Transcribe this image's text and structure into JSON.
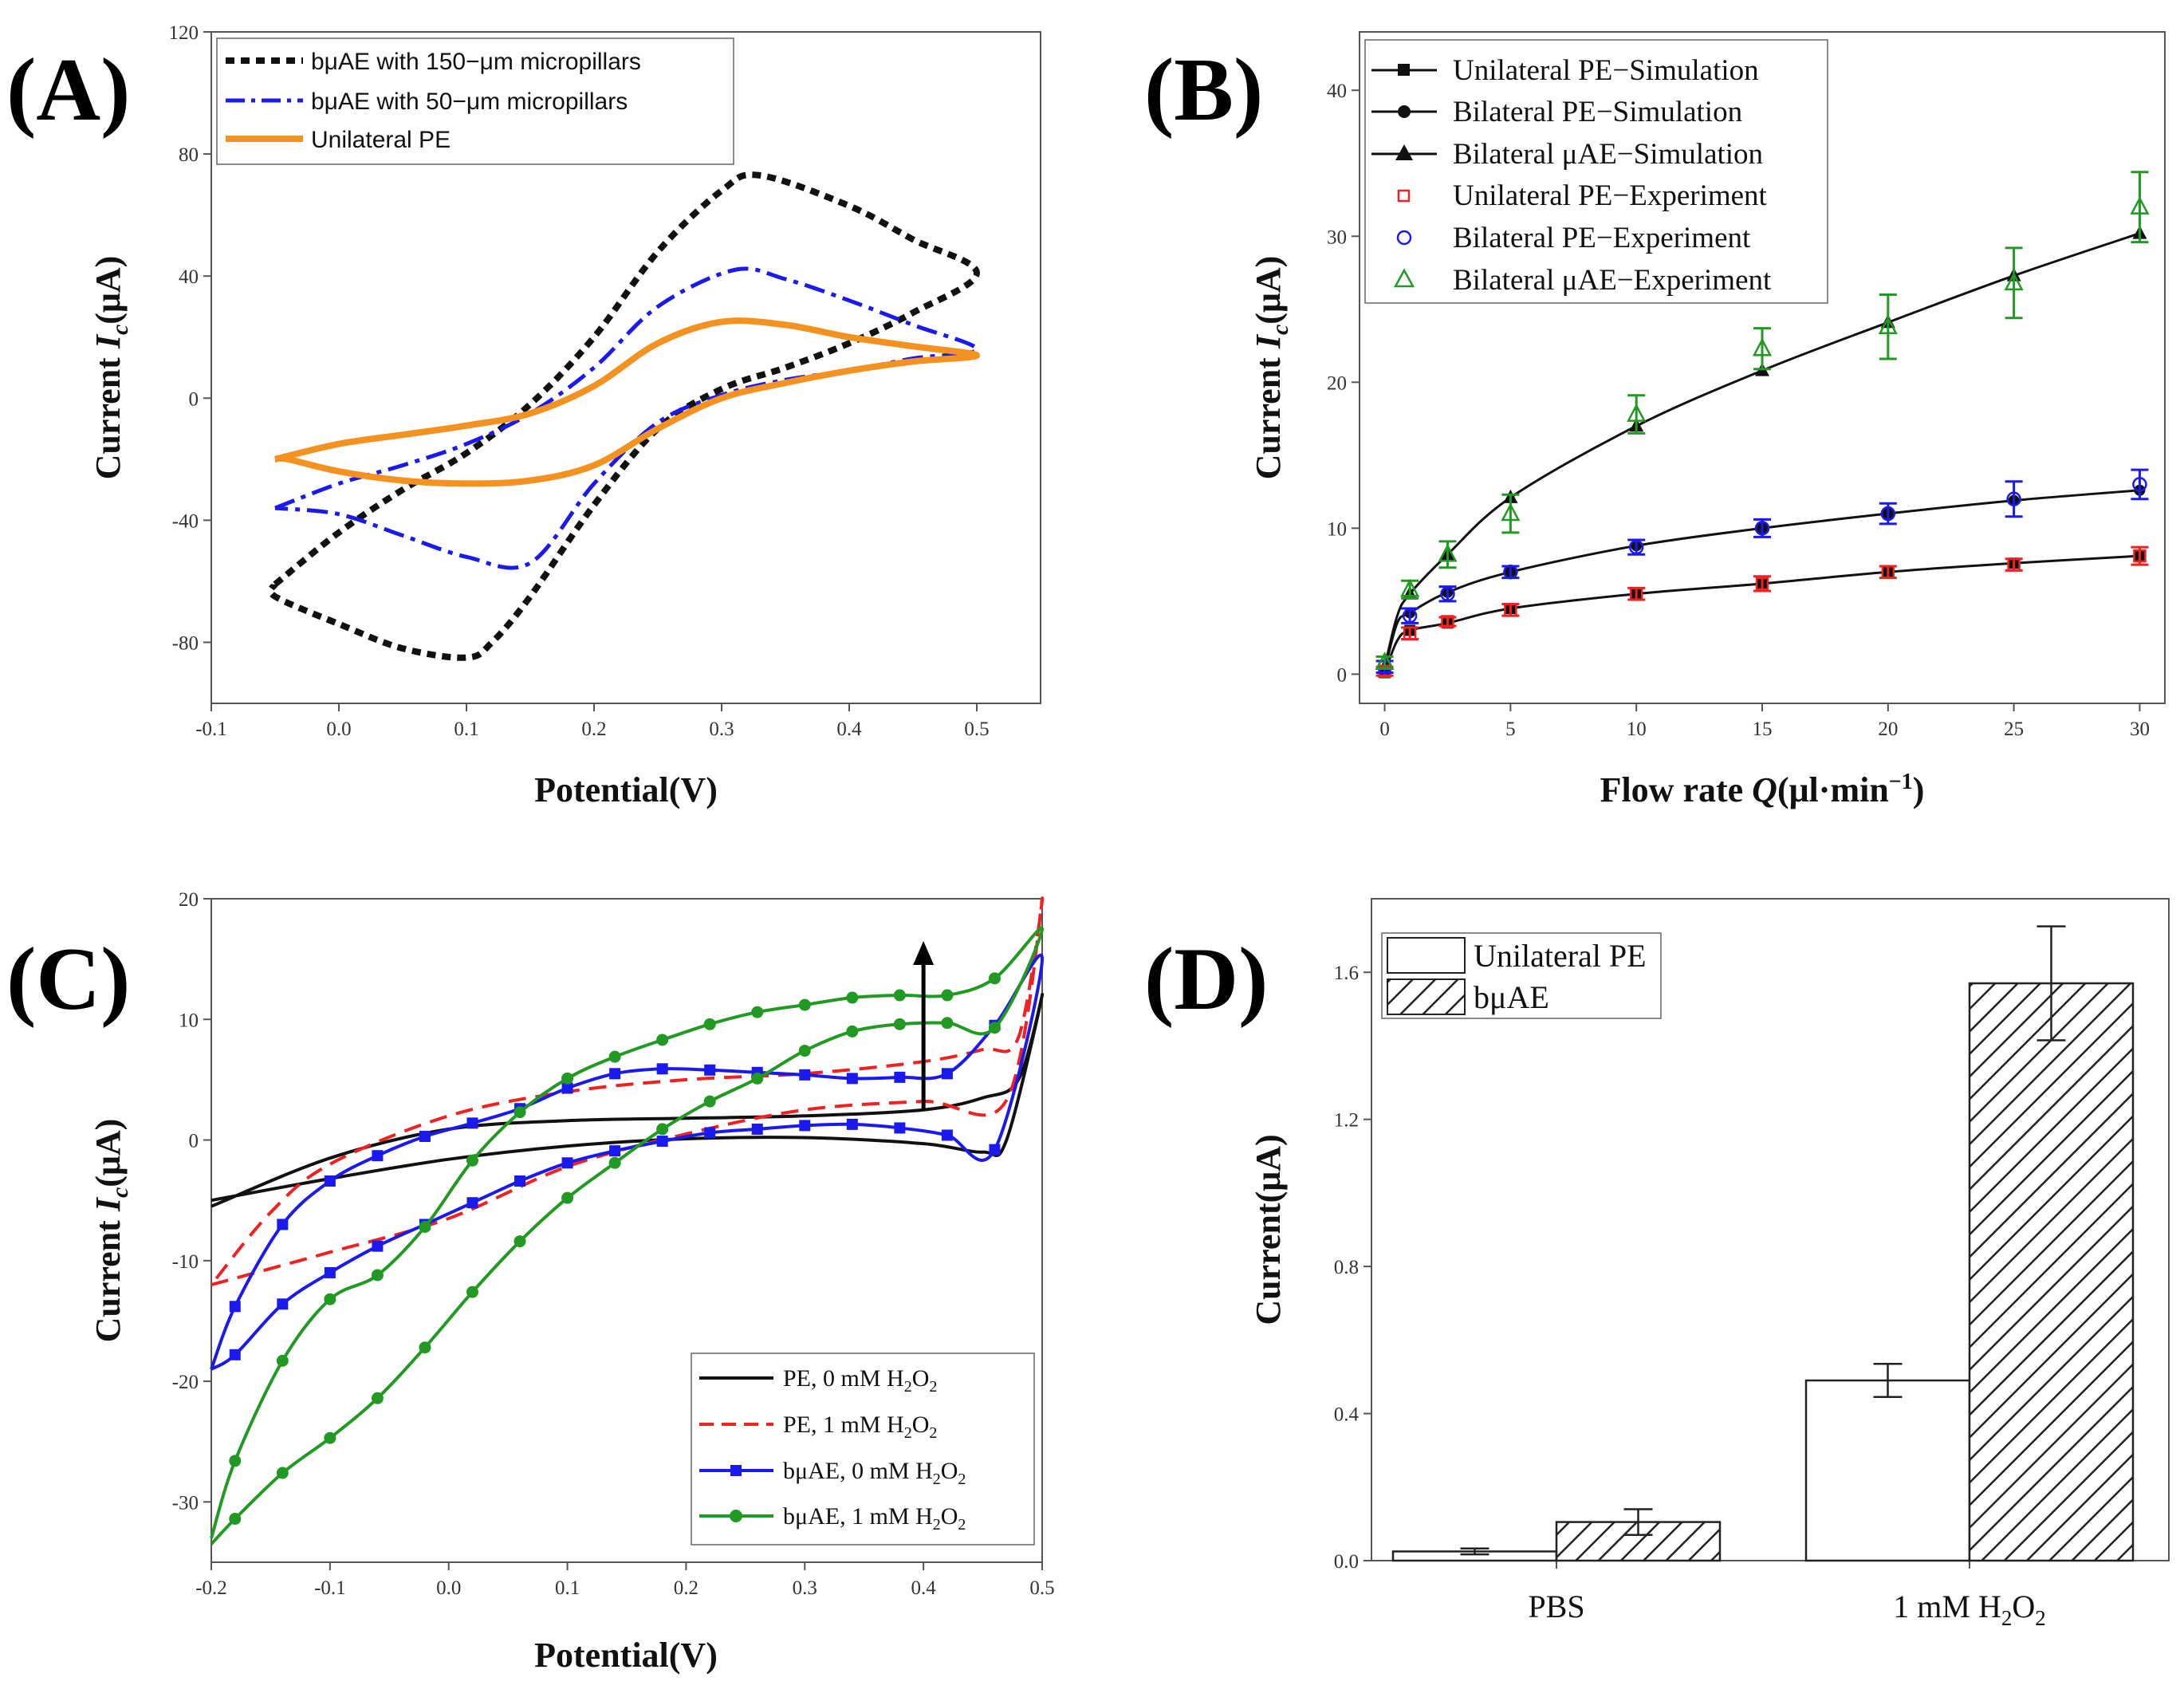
{
  "colors": {
    "black": "#111111",
    "blue": "#1a1aee",
    "orange": "#f39121",
    "red": "#ee2222",
    "green": "#229922",
    "gray": "#444444"
  },
  "chart_data": [
    {
      "panel": "(A)",
      "type": "line",
      "xlabel": "Potential(V)",
      "ylabel": "Current I_c(μA)",
      "xlim": [
        -0.1,
        0.55
      ],
      "ylim": [
        -100,
        120
      ],
      "xticks": [
        -0.1,
        0.0,
        0.1,
        0.2,
        0.3,
        0.4,
        0.5
      ],
      "xtick_labels": [
        "-0.1",
        "0.0",
        "0.1",
        "0.2",
        "0.3",
        "0.4",
        "0.5"
      ],
      "yticks": [
        -80,
        -40,
        0,
        40,
        80,
        120
      ],
      "ytick_labels": [
        "-80",
        "-40",
        "0",
        "40",
        "80",
        "120"
      ],
      "series": [
        {
          "name": "bμAE with 150−μm micropillars",
          "style": "dotted",
          "color": "#111111",
          "x": [
            -0.05,
            0.0,
            0.05,
            0.1,
            0.15,
            0.2,
            0.25,
            0.3,
            0.33,
            0.4,
            0.45,
            0.5,
            0.45,
            0.4,
            0.35,
            0.3,
            0.25,
            0.2,
            0.15,
            0.12,
            0.1,
            0.05,
            0.0,
            -0.05,
            -0.05
          ],
          "y": [
            -61,
            -44,
            -30,
            -18,
            -2,
            20,
            48,
            68,
            73,
            63,
            52,
            41,
            28,
            18,
            10,
            3,
            -10,
            -35,
            -65,
            -80,
            -85,
            -82,
            -74,
            -65,
            -61
          ]
        },
        {
          "name": "bμAE with 50−μm micropillars",
          "style": "dashdot",
          "color": "#1a1aee",
          "x": [
            -0.05,
            0.0,
            0.05,
            0.1,
            0.15,
            0.2,
            0.25,
            0.31,
            0.35,
            0.4,
            0.45,
            0.5,
            0.45,
            0.4,
            0.35,
            0.3,
            0.25,
            0.2,
            0.15,
            0.1,
            0.05,
            0.0,
            -0.05
          ],
          "y": [
            -36,
            -28,
            -22,
            -15,
            -5,
            10,
            30,
            42,
            39,
            32,
            24,
            16,
            13,
            9,
            6,
            1,
            -8,
            -28,
            -54,
            -52,
            -45,
            -38,
            -36
          ]
        },
        {
          "name": "Unilateral PE",
          "style": "solid",
          "color": "#f39121",
          "x": [
            -0.05,
            0.0,
            0.05,
            0.1,
            0.15,
            0.2,
            0.25,
            0.3,
            0.35,
            0.4,
            0.45,
            0.5,
            0.45,
            0.4,
            0.35,
            0.3,
            0.25,
            0.2,
            0.15,
            0.1,
            0.05,
            0.0,
            -0.04,
            -0.05
          ],
          "y": [
            -20,
            -15,
            -12,
            -9,
            -5,
            4,
            18,
            25,
            24,
            20,
            17,
            14,
            12,
            9,
            5,
            0,
            -10,
            -22,
            -27,
            -28,
            -27,
            -24,
            -20,
            -20
          ]
        }
      ]
    },
    {
      "panel": "(B)",
      "type": "line",
      "xlabel": "Flow rate Q(μl·min⁻¹)",
      "ylabel": "Current I_c(μA)",
      "xlim": [
        -1,
        31
      ],
      "ylim": [
        -2,
        44
      ],
      "xticks": [
        0,
        5,
        10,
        15,
        20,
        25,
        30
      ],
      "xtick_labels": [
        "0",
        "5",
        "10",
        "15",
        "20",
        "25",
        "30"
      ],
      "yticks": [
        0,
        10,
        20,
        30,
        40
      ],
      "ytick_labels": [
        "0",
        "10",
        "20",
        "30",
        "40"
      ],
      "x": [
        0,
        0.5,
        1,
        2.5,
        5,
        10,
        15,
        20,
        25,
        30
      ],
      "series": [
        {
          "name": "Unilateral PE−Simulation",
          "marker": "square",
          "color": "#111111",
          "values": [
            0.1,
            2.3,
            3.0,
            3.5,
            4.5,
            5.5,
            6.2,
            7.0,
            7.6,
            8.1
          ]
        },
        {
          "name": "Bilateral PE−Simulation",
          "marker": "circle",
          "color": "#111111",
          "values": [
            0.3,
            3.5,
            4.2,
            5.6,
            7.0,
            8.8,
            10.0,
            11.0,
            11.9,
            12.6
          ]
        },
        {
          "name": "Bilateral μAE−Simulation",
          "marker": "triangle",
          "color": "#111111",
          "values": [
            0.5,
            4.0,
            5.5,
            8.2,
            12.1,
            17.0,
            20.8,
            24.1,
            27.3,
            30.2
          ]
        },
        {
          "name": "Unilateral PE−Experiment",
          "marker": "open-square",
          "color": "#ee2222",
          "x": [
            0,
            1,
            2.5,
            5,
            10,
            15,
            20,
            25,
            30
          ],
          "values": [
            0.2,
            2.8,
            3.6,
            4.4,
            5.5,
            6.2,
            7.0,
            7.5,
            8.1
          ],
          "err": [
            0.3,
            0.4,
            0.3,
            0.4,
            0.4,
            0.5,
            0.4,
            0.4,
            0.6
          ]
        },
        {
          "name": "Bilateral PE−Experiment",
          "marker": "open-circle",
          "color": "#1a1aee",
          "x": [
            0,
            1,
            2.5,
            5,
            10,
            15,
            20,
            25,
            30
          ],
          "values": [
            0.5,
            4.0,
            5.5,
            7.0,
            8.7,
            10.0,
            11.0,
            12.0,
            13.0
          ],
          "err": [
            0.4,
            0.5,
            0.5,
            0.4,
            0.5,
            0.6,
            0.7,
            1.2,
            1.0
          ]
        },
        {
          "name": "Bilateral μAE−Experiment",
          "marker": "open-triangle",
          "color": "#229922",
          "x": [
            0,
            1,
            2.5,
            5,
            10,
            15,
            20,
            25,
            30
          ],
          "values": [
            0.8,
            5.8,
            8.2,
            11.0,
            17.8,
            22.3,
            23.8,
            26.8,
            32.0
          ],
          "err": [
            0.4,
            0.6,
            0.9,
            1.3,
            1.3,
            1.4,
            2.2,
            2.4,
            2.4
          ]
        }
      ]
    },
    {
      "panel": "(C)",
      "type": "line",
      "xlabel": "Potential(V)",
      "ylabel": "Current I_c(μA)",
      "xlim": [
        -0.2,
        0.5
      ],
      "ylim": [
        -35,
        20
      ],
      "xticks": [
        -0.2,
        -0.1,
        0.0,
        0.1,
        0.2,
        0.3,
        0.4,
        0.5
      ],
      "xtick_labels": [
        "-0.2",
        "-0.1",
        "0.0",
        "0.1",
        "0.2",
        "0.3",
        "0.4",
        "0.5"
      ],
      "yticks": [
        -30,
        -20,
        -10,
        0,
        10,
        20
      ],
      "ytick_labels": [
        "-30",
        "-20",
        "-10",
        "0",
        "10",
        "20"
      ],
      "series": [
        {
          "name": "PE, 0 mM H₂O₂",
          "style": "solid",
          "color": "#111111",
          "x": [
            -0.2,
            -0.1,
            0.0,
            0.1,
            0.2,
            0.3,
            0.4,
            0.45,
            0.47,
            0.5,
            0.48,
            0.45,
            0.4,
            0.3,
            0.2,
            0.1,
            0.0,
            -0.1,
            -0.2
          ],
          "y": [
            -5,
            -3.2,
            -1.6,
            -0.5,
            0.1,
            0.2,
            -0.3,
            -1.0,
            0,
            12,
            5,
            3.5,
            2.5,
            2.0,
            1.8,
            1.6,
            0.9,
            -1.5,
            -5.5
          ]
        },
        {
          "name": "PE, 1 mM H₂O₂",
          "style": "dashed",
          "color": "#ee2222",
          "x": [
            -0.2,
            -0.1,
            0.0,
            0.1,
            0.2,
            0.3,
            0.4,
            0.47,
            0.5,
            0.48,
            0.45,
            0.4,
            0.3,
            0.2,
            0.1,
            0.0,
            -0.1,
            -0.15,
            -0.2
          ],
          "y": [
            -12,
            -9.3,
            -6.5,
            -2.2,
            0.5,
            2.5,
            3.2,
            3.3,
            20,
            8.5,
            7.5,
            6.5,
            5.5,
            5.0,
            4.0,
            2.0,
            -2,
            -6,
            -12
          ]
        },
        {
          "name": "bμAE, 0 mM H₂O₂",
          "style": "solid-marker",
          "marker": "square",
          "color": "#1a1aee",
          "x": [
            -0.2,
            -0.18,
            -0.14,
            -0.1,
            -0.06,
            -0.02,
            0.02,
            0.06,
            0.1,
            0.14,
            0.18,
            0.22,
            0.26,
            0.3,
            0.34,
            0.38,
            0.42,
            0.46,
            0.5,
            0.46,
            0.42,
            0.38,
            0.34,
            0.3,
            0.26,
            0.22,
            0.18,
            0.14,
            0.1,
            0.06,
            0.02,
            -0.02,
            -0.06,
            -0.1,
            -0.14,
            -0.18,
            -0.2
          ],
          "y": [
            -19,
            -17.8,
            -13.6,
            -11.0,
            -8.8,
            -7.0,
            -5.2,
            -3.4,
            -1.9,
            -0.9,
            -0.1,
            0.6,
            0.9,
            1.2,
            1.3,
            1.0,
            0.4,
            -0.8,
            15,
            9.5,
            5.5,
            5.2,
            5.1,
            5.4,
            5.6,
            5.8,
            5.9,
            5.5,
            4.3,
            2.6,
            1.4,
            0.3,
            -1.3,
            -3.4,
            -7.0,
            -13.8,
            -19
          ]
        },
        {
          "name": "bμAE, 1 mM H₂O₂",
          "style": "solid-marker",
          "marker": "circle",
          "color": "#229922",
          "x": [
            -0.2,
            -0.18,
            -0.14,
            -0.1,
            -0.06,
            -0.02,
            0.02,
            0.06,
            0.1,
            0.14,
            0.18,
            0.22,
            0.26,
            0.3,
            0.34,
            0.38,
            0.42,
            0.46,
            0.5,
            0.46,
            0.42,
            0.38,
            0.34,
            0.3,
            0.26,
            0.22,
            0.18,
            0.14,
            0.1,
            0.06,
            0.02,
            -0.02,
            -0.06,
            -0.1,
            -0.14,
            -0.18,
            -0.2
          ],
          "y": [
            -33.5,
            -31.4,
            -27.6,
            -24.7,
            -21.4,
            -17.2,
            -12.6,
            -8.4,
            -4.8,
            -1.9,
            0.9,
            3.2,
            5.1,
            7.4,
            9.0,
            9.6,
            9.7,
            9.3,
            17.5,
            13.4,
            12.0,
            12.0,
            11.8,
            11.2,
            10.6,
            9.6,
            8.3,
            6.9,
            5.1,
            2.3,
            -1.7,
            -7.2,
            -11.2,
            -13.2,
            -18.3,
            -26.6,
            -33
          ]
        }
      ],
      "annotations": [
        {
          "type": "arrow",
          "direction": "up",
          "from": [
            0.4,
            2.5
          ],
          "to": [
            0.4,
            16.5
          ]
        }
      ]
    },
    {
      "panel": "(D)",
      "type": "bar",
      "xlabel": "",
      "ylabel": "Current(μA)",
      "categories": [
        "PBS",
        "1 mM H₂O₂"
      ],
      "ylim": [
        0,
        1.8
      ],
      "yticks": [
        0.0,
        0.4,
        0.8,
        1.2,
        1.6
      ],
      "ytick_labels": [
        "0.0",
        "0.4",
        "0.8",
        "1.2",
        "1.6"
      ],
      "series": [
        {
          "name": "Unilateral PE",
          "fill": "white",
          "values": [
            0.025,
            0.49
          ],
          "err": [
            0.008,
            0.045
          ]
        },
        {
          "name": "bμAE",
          "fill": "hatched",
          "values": [
            0.105,
            1.57
          ],
          "err": [
            0.035,
            0.155
          ]
        }
      ]
    }
  ]
}
